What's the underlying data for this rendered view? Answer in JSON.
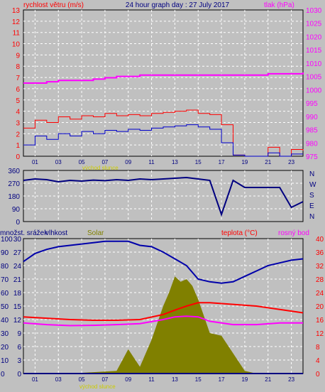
{
  "header": {
    "left_label": "rychlost větru (m/s)",
    "title": "24 hour graph day : 27 July 2017",
    "right_label": "tlak (hPa)"
  },
  "sunrise_label": "východ slunce",
  "bottom_labels": {
    "left": "množst. srážek",
    "humidity": "vlhkost",
    "solar": "Solar",
    "temp": "teplota (°C)",
    "dew": "rosný bod"
  },
  "colors": {
    "wind": "#ff0000",
    "gust_avg": "#0000cc",
    "pressure": "#ff00ff",
    "direction": "#000080",
    "humidity": "#0000aa",
    "temp": "#ff0000",
    "dew": "#ff00ff",
    "solar": "#808000",
    "rain": "#000080"
  },
  "chart_data": [
    {
      "type": "line",
      "title": "24 hour graph day : 27 July 2017",
      "ylabel": "rychlost větru (m/s)",
      "y2label": "tlak (hPa)",
      "ylim": [
        0,
        13
      ],
      "y2lim": [
        975,
        1030
      ],
      "y_ticks": [
        "0",
        "1",
        "2",
        "3",
        "4",
        "5",
        "6",
        "7",
        "8",
        "9",
        "10",
        "11",
        "12",
        "13"
      ],
      "y2_ticks": [
        "975",
        "980",
        "985",
        "990",
        "995",
        "1000",
        "1005",
        "1010",
        "1015",
        "1020",
        "1025",
        "1030"
      ],
      "x_ticks": [
        "01",
        "03",
        "05",
        "07",
        "09",
        "11",
        "13",
        "15",
        "17",
        "19",
        "21",
        "23"
      ],
      "x_hours": [
        1,
        3,
        5,
        7,
        9,
        11,
        13,
        15,
        17,
        19,
        21,
        23
      ],
      "series": [
        {
          "name": "rychlost větru",
          "axis": "left",
          "x": [
            0,
            1,
            2,
            3,
            4,
            5,
            6,
            7,
            8,
            9,
            10,
            11,
            12,
            13,
            14,
            15,
            16,
            17,
            18,
            19,
            20,
            21,
            22,
            23,
            24
          ],
          "values": [
            2.5,
            3.2,
            3.0,
            3.5,
            3.3,
            3.6,
            3.5,
            3.8,
            3.6,
            3.7,
            3.6,
            3.8,
            3.9,
            4.0,
            4.1,
            3.8,
            3.7,
            2.8,
            0.1,
            0,
            0,
            0.8,
            0,
            0.6,
            0.5
          ]
        },
        {
          "name": "",
          "axis": "left",
          "x": [
            0,
            1,
            2,
            3,
            4,
            5,
            6,
            7,
            8,
            9,
            10,
            11,
            12,
            13,
            14,
            15,
            16,
            17,
            18,
            19,
            20,
            21,
            22,
            23,
            24
          ],
          "values": [
            1.0,
            1.8,
            1.5,
            2.0,
            1.8,
            2.2,
            2.0,
            2.3,
            2.2,
            2.4,
            2.3,
            2.5,
            2.6,
            2.7,
            2.8,
            2.6,
            2.4,
            1.2,
            0.1,
            0,
            0,
            0.3,
            0,
            0.2,
            0.2
          ]
        },
        {
          "name": "tlak",
          "axis": "right",
          "x": [
            0,
            2,
            3,
            4,
            6,
            7,
            8,
            10,
            12,
            14,
            16,
            18,
            20,
            21,
            22,
            23,
            24
          ],
          "values": [
            1002.5,
            1003,
            1003.5,
            1003.5,
            1004,
            1004.5,
            1005,
            1005.5,
            1005.5,
            1005.5,
            1005.5,
            1005.5,
            1005.5,
            1006,
            1006,
            1006,
            1006.5
          ]
        }
      ]
    },
    {
      "type": "line",
      "ylim": [
        0,
        360
      ],
      "y_ticks": [
        "0",
        "90",
        "180",
        "270",
        "360"
      ],
      "y2_ticks": [
        "N",
        "W",
        "S",
        "E",
        "N"
      ],
      "x": [
        0,
        1,
        2,
        3,
        4,
        5,
        6,
        7,
        8,
        9,
        10,
        11,
        12,
        13,
        14,
        15,
        16,
        17,
        18,
        19,
        20,
        21,
        22,
        23,
        24
      ],
      "series": [
        {
          "name": "",
          "values": [
            290,
            300,
            295,
            280,
            290,
            285,
            292,
            288,
            295,
            290,
            300,
            295,
            300,
            305,
            310,
            300,
            290,
            50,
            290,
            240,
            240,
            240,
            240,
            100,
            140
          ]
        }
      ]
    },
    {
      "type": "line",
      "y_ticks": [
        "0",
        "10",
        "20",
        "30",
        "40",
        "50",
        "60",
        "70",
        "80",
        "90",
        "100"
      ],
      "y_ticks_left_inner": [
        "0",
        "3",
        "6",
        "9",
        "12",
        "15",
        "18",
        "21",
        "24",
        "27",
        "30"
      ],
      "y_ticks_right": [
        "0",
        "4",
        "8",
        "12",
        "16",
        "20",
        "24",
        "28",
        "32",
        "36",
        "40"
      ],
      "x_ticks": [
        "01",
        "03",
        "05",
        "07",
        "09",
        "11",
        "13",
        "15",
        "17",
        "19",
        "21",
        "23"
      ],
      "series": [
        {
          "name": "vlhkost",
          "axis": "left",
          "x": [
            0,
            1,
            2,
            3,
            4,
            5,
            6,
            7,
            8,
            9,
            10,
            11,
            12,
            13,
            14,
            15,
            16,
            17,
            18,
            19,
            20,
            21,
            22,
            23,
            24
          ],
          "values": [
            83,
            89,
            92,
            94,
            95,
            96,
            97,
            98,
            98,
            98,
            95,
            94,
            90,
            85,
            80,
            70,
            68,
            67,
            68,
            72,
            76,
            80,
            82,
            84,
            85
          ]
        },
        {
          "name": "teplota",
          "axis": "right",
          "x": [
            0,
            2,
            4,
            6,
            8,
            10,
            12,
            13,
            14,
            15,
            16,
            18,
            20,
            22,
            24
          ],
          "values": [
            16.8,
            16.4,
            16,
            15.8,
            15.8,
            16,
            17.5,
            18.8,
            20,
            21,
            21,
            20.5,
            20,
            19,
            18
          ]
        },
        {
          "name": "rosný bod",
          "axis": "right",
          "x": [
            0,
            2,
            4,
            6,
            8,
            10,
            12,
            13,
            14,
            15,
            16,
            18,
            20,
            22,
            24
          ],
          "values": [
            15,
            14.5,
            14.2,
            14.3,
            14.5,
            14.8,
            16,
            16.8,
            17,
            16.8,
            15.5,
            14.5,
            14.5,
            15,
            15
          ]
        },
        {
          "name": "Solar",
          "axis": "left",
          "x": [
            0,
            4,
            8,
            9,
            10,
            11,
            12,
            12.5,
            13,
            13.5,
            14,
            14.5,
            15,
            16,
            17,
            18,
            19,
            20,
            24
          ],
          "values": [
            0,
            0,
            2,
            18,
            5,
            25,
            50,
            60,
            72,
            68,
            70,
            65,
            55,
            30,
            28,
            15,
            2,
            0,
            0
          ]
        },
        {
          "name": "množst. srážek",
          "axis": "left_inner",
          "x": [
            0,
            1,
            2,
            3,
            4,
            5,
            6,
            7,
            8,
            9,
            10,
            11,
            12,
            13,
            14,
            15,
            16,
            17,
            18,
            19,
            20,
            21,
            22,
            23,
            24
          ],
          "values": [
            0,
            0,
            0,
            0,
            0,
            0,
            0,
            0,
            0,
            0,
            0,
            0,
            0,
            0,
            0,
            0,
            0,
            0,
            0,
            0,
            0,
            0,
            0,
            0,
            0
          ]
        }
      ]
    }
  ]
}
